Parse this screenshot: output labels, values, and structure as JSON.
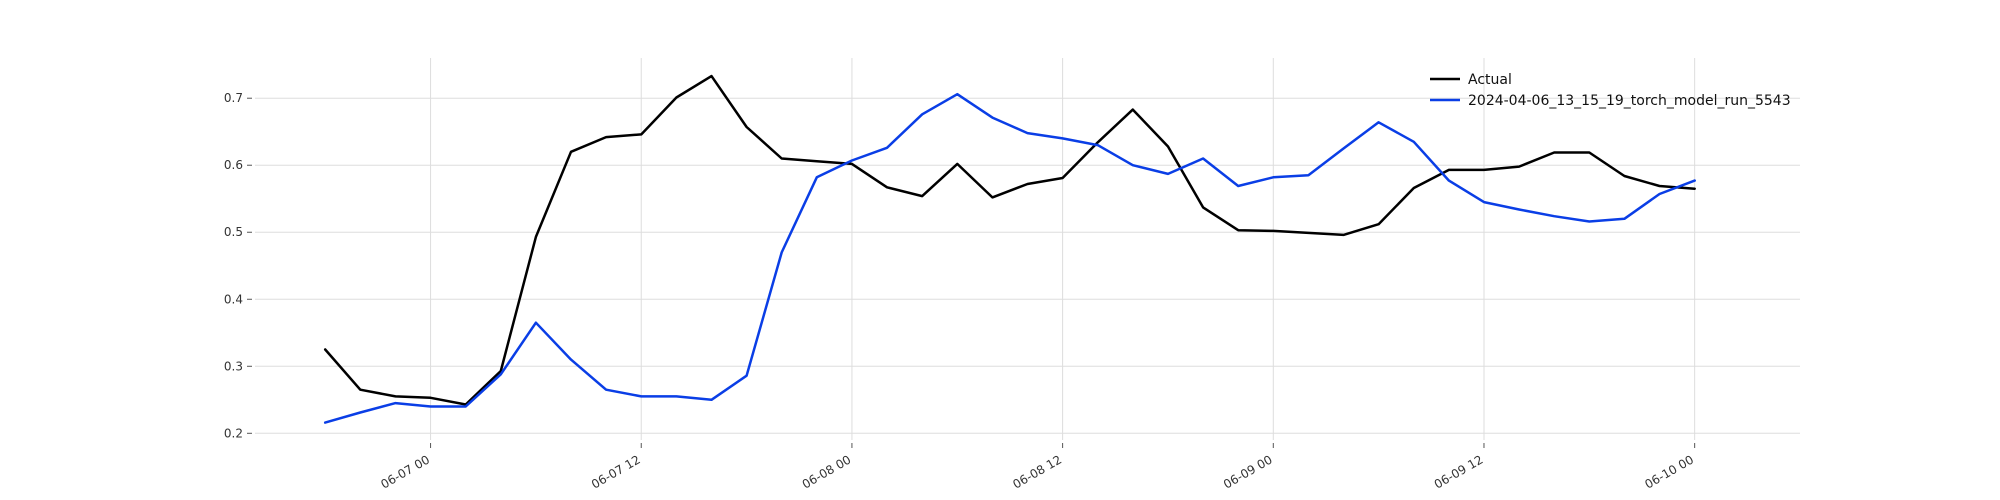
{
  "chart_data": {
    "type": "line",
    "title": "",
    "xlabel": "",
    "ylabel": "",
    "x_start": "2024-06-06 18:00",
    "x_step_hours": 2,
    "xlim": [
      "2024-06-06 14:00",
      "2024-06-10 06:00"
    ],
    "ylim": [
      0.19,
      0.76
    ],
    "grid": true,
    "legend_position": "top-right",
    "yticks": [
      {
        "value": 0.2,
        "label": "0.2"
      },
      {
        "value": 0.3,
        "label": "0.3"
      },
      {
        "value": 0.4,
        "label": "0.4"
      },
      {
        "value": 0.5,
        "label": "0.5"
      },
      {
        "value": 0.6,
        "label": "0.6"
      },
      {
        "value": 0.7,
        "label": "0.7"
      }
    ],
    "xticks": [
      {
        "hours": 6,
        "label": "06-07 00"
      },
      {
        "hours": 18,
        "label": "06-07 12"
      },
      {
        "hours": 30,
        "label": "06-08 00"
      },
      {
        "hours": 42,
        "label": "06-08 12"
      },
      {
        "hours": 54,
        "label": "06-09 00"
      },
      {
        "hours": 66,
        "label": "06-09 12"
      },
      {
        "hours": 78,
        "label": "06-10 00"
      }
    ],
    "series": [
      {
        "name": "Actual",
        "color": "#000000",
        "values": [
          0.325,
          0.265,
          0.255,
          0.253,
          0.243,
          0.293,
          0.493,
          0.62,
          0.642,
          0.646,
          0.701,
          0.733,
          0.657,
          0.61,
          0.606,
          0.602,
          0.567,
          0.554,
          0.602,
          0.552,
          0.572,
          0.581,
          0.634,
          0.683,
          0.628,
          0.537,
          0.503,
          0.502,
          0.499,
          0.496,
          0.512,
          0.566,
          0.593,
          0.593,
          0.598,
          0.619,
          0.619,
          0.584,
          0.569,
          0.565
        ]
      },
      {
        "name": "2024-04-06_13_15_19_torch_model_run_5543",
        "color": "#0a3ee6",
        "values": [
          0.216,
          0.231,
          0.245,
          0.24,
          0.24,
          0.288,
          0.365,
          0.31,
          0.265,
          0.255,
          0.255,
          0.25,
          0.286,
          0.47,
          0.582,
          0.607,
          0.626,
          0.676,
          0.706,
          0.671,
          0.648,
          0.64,
          0.63,
          0.6,
          0.587,
          0.61,
          0.569,
          0.582,
          0.585,
          0.625,
          0.664,
          0.635,
          0.577,
          0.545,
          0.534,
          0.524,
          0.516,
          0.52,
          0.557,
          0.577
        ]
      }
    ]
  }
}
